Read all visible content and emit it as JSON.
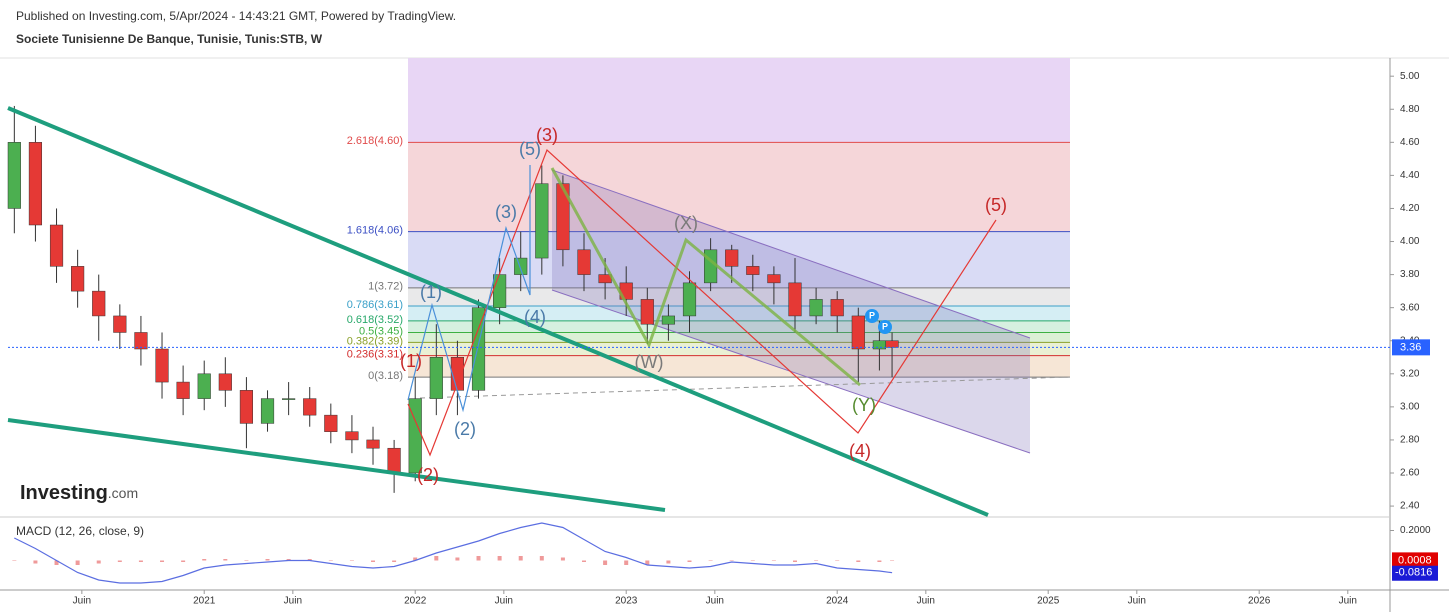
{
  "header": {
    "published": "Published on Investing.com, 5/Apr/2024 - 14:43:21 GMT, Powered by TradingView.",
    "symbol": "Societe Tunisienne De Banque, Tunisie, Tunis:STB, W"
  },
  "logo": "Investing",
  "logo_suffix": ".com",
  "chart_data": {
    "type": "candlestick",
    "x": [
      2020.1,
      2020.2,
      2020.3,
      2020.4,
      2020.5,
      2020.6,
      2020.7,
      2020.8,
      2020.9,
      2021.0,
      2021.1,
      2021.2,
      2021.3,
      2021.4,
      2021.5,
      2021.6,
      2021.7,
      2021.8,
      2021.9,
      2022.0,
      2022.1,
      2022.2,
      2022.3,
      2022.4,
      2022.5,
      2022.6,
      2022.7,
      2022.8,
      2022.9,
      2023.0,
      2023.1,
      2023.2,
      2023.3,
      2023.4,
      2023.5,
      2023.6,
      2023.7,
      2023.8,
      2023.9,
      2024.0,
      2024.1,
      2024.2,
      2024.26
    ],
    "open": [
      4.2,
      4.6,
      4.1,
      3.85,
      3.7,
      3.55,
      3.45,
      3.35,
      3.15,
      3.05,
      3.2,
      3.1,
      2.9,
      3.05,
      3.05,
      2.95,
      2.85,
      2.8,
      2.75,
      2.6,
      3.05,
      3.3,
      3.1,
      3.6,
      3.8,
      3.9,
      4.35,
      3.95,
      3.8,
      3.75,
      3.65,
      3.5,
      3.55,
      3.75,
      3.95,
      3.85,
      3.8,
      3.75,
      3.55,
      3.65,
      3.55,
      3.35,
      3.4
    ],
    "high": [
      4.82,
      4.7,
      4.2,
      3.95,
      3.8,
      3.62,
      3.55,
      3.45,
      3.25,
      3.28,
      3.3,
      3.18,
      3.1,
      3.15,
      3.12,
      3.02,
      2.95,
      2.88,
      2.8,
      3.18,
      3.5,
      3.4,
      3.65,
      3.9,
      4.06,
      4.46,
      4.4,
      4.05,
      3.9,
      3.85,
      3.72,
      3.62,
      3.82,
      4.02,
      3.98,
      3.92,
      3.85,
      3.9,
      3.72,
      3.7,
      3.6,
      3.52,
      3.45
    ],
    "low": [
      4.05,
      4.0,
      3.75,
      3.6,
      3.4,
      3.35,
      3.25,
      3.05,
      2.95,
      2.98,
      3.0,
      2.75,
      2.85,
      2.95,
      2.88,
      2.78,
      2.72,
      2.65,
      2.48,
      2.55,
      2.95,
      2.95,
      3.05,
      3.5,
      3.7,
      3.8,
      3.85,
      3.7,
      3.65,
      3.55,
      3.38,
      3.4,
      3.45,
      3.7,
      3.75,
      3.7,
      3.62,
      3.45,
      3.5,
      3.45,
      3.15,
      3.22,
      3.18
    ],
    "close": [
      4.6,
      4.1,
      3.85,
      3.7,
      3.55,
      3.45,
      3.35,
      3.15,
      3.05,
      3.2,
      3.1,
      2.9,
      3.05,
      3.05,
      2.95,
      2.85,
      2.8,
      2.75,
      2.6,
      3.05,
      3.3,
      3.1,
      3.6,
      3.8,
      3.9,
      4.35,
      3.95,
      3.8,
      3.75,
      3.65,
      3.5,
      3.55,
      3.75,
      3.95,
      3.85,
      3.8,
      3.75,
      3.55,
      3.65,
      3.55,
      3.35,
      3.4,
      3.36
    ],
    "up_color": "#4caf50",
    "down_color": "#e53935",
    "wick_color": "#333333",
    "xlim": [
      2020.07,
      2026.62
    ],
    "xticks": [
      {
        "value": 2020.42,
        "label": "Juin"
      },
      2021,
      {
        "value": 2021.42,
        "label": "Juin"
      },
      2022,
      {
        "value": 2022.42,
        "label": "Juin"
      },
      2023,
      {
        "value": 2023.42,
        "label": "Juin"
      },
      2024,
      {
        "value": 2024.42,
        "label": "Juin"
      },
      2025,
      {
        "value": 2025.42,
        "label": "Juin"
      },
      2026,
      {
        "value": 2026.42,
        "label": "Juin"
      }
    ],
    "ylim": [
      2.34,
      5.11
    ],
    "yticks": [
      {
        "value": 2.4,
        "label": "2.40"
      },
      {
        "value": 2.6,
        "label": "2.60"
      },
      {
        "value": 2.8,
        "label": "2.80"
      },
      {
        "value": 3.0,
        "label": "3.00"
      },
      {
        "value": 3.2,
        "label": "3.20"
      },
      {
        "value": 3.4,
        "label": "3.40"
      },
      {
        "value": 3.6,
        "label": "3.60"
      },
      {
        "value": 3.8,
        "label": "3.80"
      },
      {
        "value": 4.0,
        "label": "4.00"
      },
      {
        "value": 4.2,
        "label": "4.20"
      },
      {
        "value": 4.4,
        "label": "4.40"
      },
      {
        "value": 4.6,
        "label": "4.60"
      },
      {
        "value": 4.8,
        "label": "4.80"
      },
      {
        "value": 5.0,
        "label": "5.00"
      }
    ],
    "last_price": 3.36,
    "last_price_color": "#2962ff",
    "fib_top_fill": "#e8d6f5",
    "fib_levels": [
      {
        "label": "2.618(4.60)",
        "value": 4.6,
        "color": "#e04a4a",
        "fill": "#f5d6d9"
      },
      {
        "label": "1.618(4.06)",
        "value": 4.06,
        "color": "#3b4fc4",
        "fill": "#d9dbf5"
      },
      {
        "label": "1(3.72)",
        "value": 3.72,
        "color": "#777777",
        "fill": "#e9e9ea"
      },
      {
        "label": "0.786(3.61)",
        "value": 3.61,
        "color": "#3aa0c8",
        "fill": "#d5eef4"
      },
      {
        "label": "0.618(3.52)",
        "value": 3.52,
        "color": "#27a86a",
        "fill": "#d6f0e0"
      },
      {
        "label": "0.5(3.45)",
        "value": 3.45,
        "color": "#3cb043",
        "fill": "#dbf0d6"
      },
      {
        "label": "0.382(3.39)",
        "value": 3.39,
        "color": "#8aa12a",
        "fill": "#eaf0d4"
      },
      {
        "label": "0.236(3.31)",
        "value": 3.31,
        "color": "#d32f2f",
        "fill": "#f6e6d6"
      },
      {
        "label": "0(3.18)",
        "value": 3.18,
        "color": "#777777",
        "fill": "#f5d6d9"
      }
    ],
    "wave_labels": [
      {
        "text": "(1)",
        "color": "#c62828"
      },
      {
        "text": "(2)",
        "color": "#c62828"
      },
      {
        "text": "(3)",
        "color": "#c62828"
      },
      {
        "text": "(4)",
        "color": "#c62828"
      },
      {
        "text": "(5)",
        "color": "#c62828"
      },
      {
        "text": "(1)",
        "color": "#4a7aa8"
      },
      {
        "text": "(2)",
        "color": "#4a7aa8"
      },
      {
        "text": "(3)",
        "color": "#4a7aa8"
      },
      {
        "text": "(4)",
        "color": "#4a7aa8"
      },
      {
        "text": "(5)",
        "color": "#4a7aa8"
      },
      {
        "text": "(X)",
        "color": "#7a7a7a"
      },
      {
        "text": "(W)",
        "color": "#7a7a7a"
      },
      {
        "text": "(Y)",
        "color": "#558b2f"
      }
    ],
    "macd": {
      "title": "MACD (12, 26, close, 9)",
      "macd_values": [
        0.15,
        0.08,
        0.0,
        -0.08,
        -0.13,
        -0.15,
        -0.15,
        -0.14,
        -0.1,
        -0.05,
        -0.03,
        -0.02,
        -0.01,
        0.0,
        0.0,
        -0.02,
        -0.04,
        -0.05,
        -0.04,
        0.0,
        0.05,
        0.09,
        0.13,
        0.18,
        0.22,
        0.25,
        0.22,
        0.14,
        0.06,
        0.02,
        -0.03,
        -0.04,
        -0.05,
        -0.04,
        -0.01,
        -0.02,
        -0.03,
        -0.03,
        -0.02,
        -0.05,
        -0.06,
        -0.07,
        -0.0816
      ],
      "histogram": [
        0.0,
        -0.02,
        -0.03,
        -0.03,
        -0.02,
        -0.01,
        -0.01,
        -0.01,
        -0.01,
        0.01,
        0.01,
        0.0,
        0.01,
        0.01,
        0.01,
        0.0,
        0.0,
        -0.01,
        -0.01,
        0.02,
        0.03,
        0.02,
        0.03,
        0.03,
        0.03,
        0.03,
        0.02,
        -0.01,
        -0.03,
        -0.03,
        -0.03,
        -0.02,
        -0.01,
        0.0,
        0.0,
        0.0,
        0.0,
        -0.01,
        0.0,
        0.0,
        -0.01,
        -0.01,
        0.0008
      ],
      "macd_color": "#5b6ee1",
      "histogram_color": "#ef9a9a",
      "ylim": [
        -0.19,
        0.27
      ],
      "yticks": [
        {
          "value": 0.2,
          "label": "0.2000"
        }
      ],
      "last_histogram": 0.0008,
      "last_macd": -0.0816
    }
  }
}
